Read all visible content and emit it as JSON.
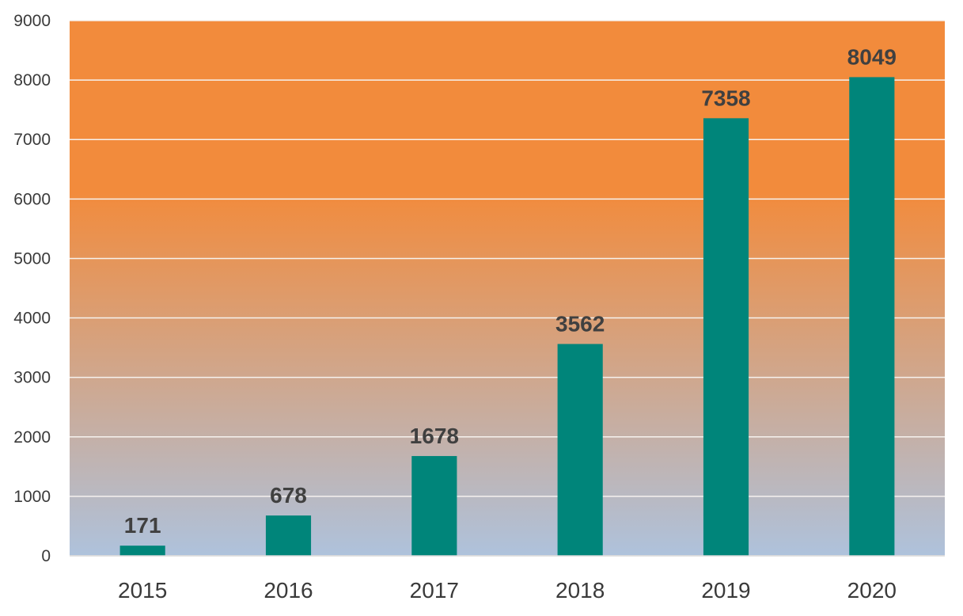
{
  "chart_data": {
    "type": "bar",
    "title": "",
    "xlabel": "",
    "ylabel": "",
    "categories": [
      "2015",
      "2016",
      "2017",
      "2018",
      "2019",
      "2020"
    ],
    "values": [
      171,
      678,
      1678,
      3562,
      7358,
      8049
    ],
    "data_labels": [
      "171",
      "678",
      "1678",
      "3562",
      "7358",
      "8049"
    ],
    "ylim": [
      0,
      9000
    ],
    "yticks": [
      0,
      1000,
      2000,
      3000,
      4000,
      5000,
      6000,
      7000,
      8000,
      9000
    ],
    "ytick_labels": [
      "0",
      "1000",
      "2000",
      "3000",
      "4000",
      "5000",
      "6000",
      "7000",
      "8000",
      "9000"
    ],
    "grid": true,
    "legend": "none",
    "colors": {
      "bar": "#00857a",
      "background_top": "#f28b3c",
      "background_bottom": "#aec2dc",
      "gridline": "#f6f2ee"
    }
  }
}
